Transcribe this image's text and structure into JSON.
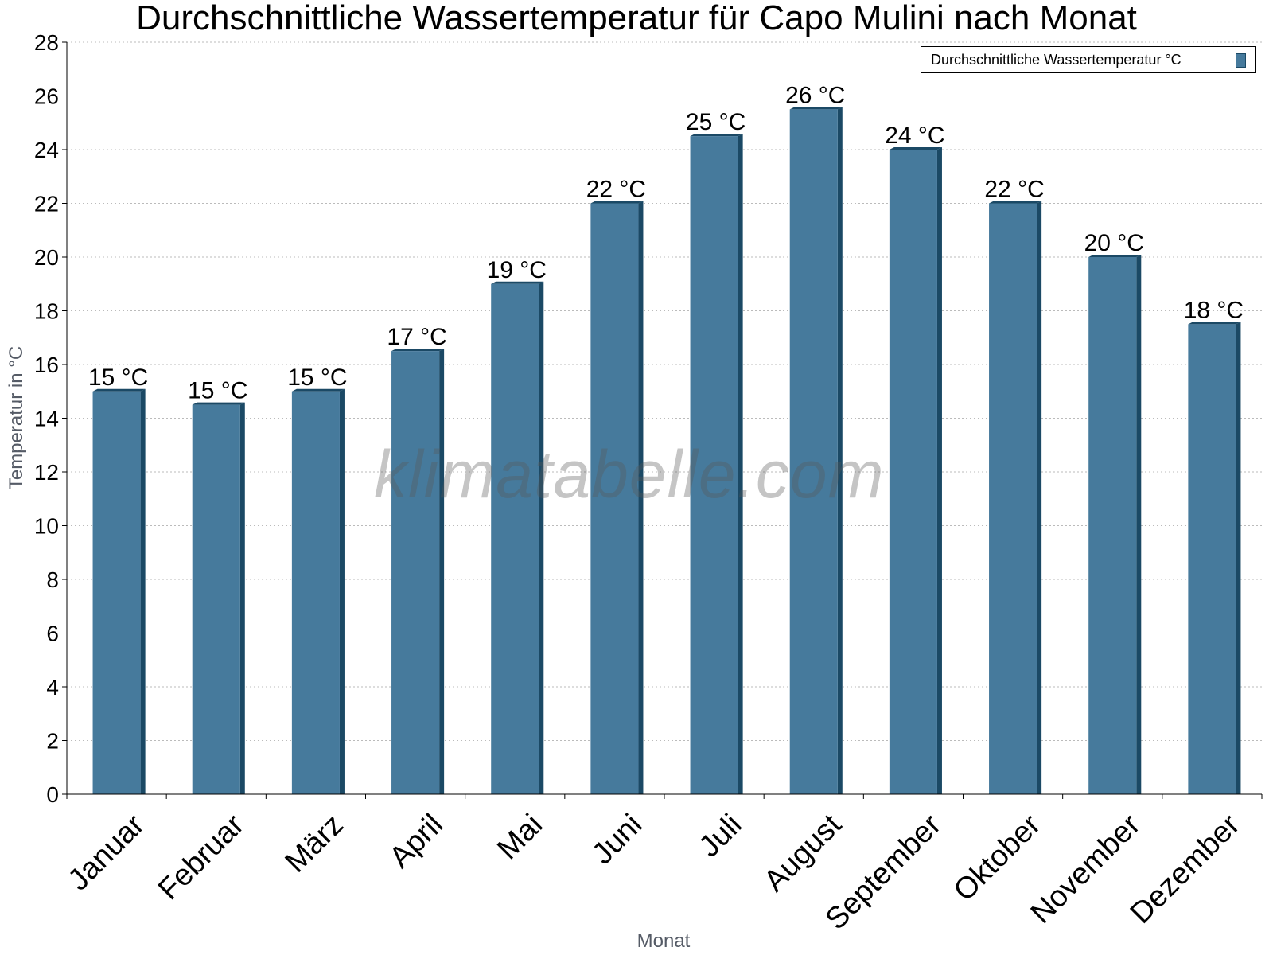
{
  "watermark": "klimatabelle.com",
  "chart_data": {
    "type": "bar",
    "title": "Durchschnittliche Wassertemperatur für Capo Mulini nach Monat",
    "xlabel": "Monat",
    "ylabel": "Temperatur in °C",
    "ylim": [
      0,
      28
    ],
    "yticks": [
      0,
      2,
      4,
      6,
      8,
      10,
      12,
      14,
      16,
      18,
      20,
      22,
      24,
      26,
      28
    ],
    "categories": [
      "Januar",
      "Februar",
      "März",
      "April",
      "Mai",
      "Juni",
      "Juli",
      "August",
      "September",
      "Oktober",
      "November",
      "Dezember"
    ],
    "series": [
      {
        "name": "Durchschnittliche Wassertemperatur °C",
        "values": [
          15,
          14.5,
          15,
          16.5,
          19,
          22,
          24.5,
          25.5,
          24,
          22,
          20,
          17.5
        ],
        "labels": [
          "15 °C",
          "15 °C",
          "15 °C",
          "17 °C",
          "19 °C",
          "22 °C",
          "25 °C",
          "26 °C",
          "24 °C",
          "22 °C",
          "20 °C",
          "18 °C"
        ]
      }
    ],
    "grid": true,
    "legend": "top-right",
    "colors": {
      "bar": "#467a9c",
      "bar_edge": "#1b4965",
      "grid": "#bbbbbb"
    }
  }
}
